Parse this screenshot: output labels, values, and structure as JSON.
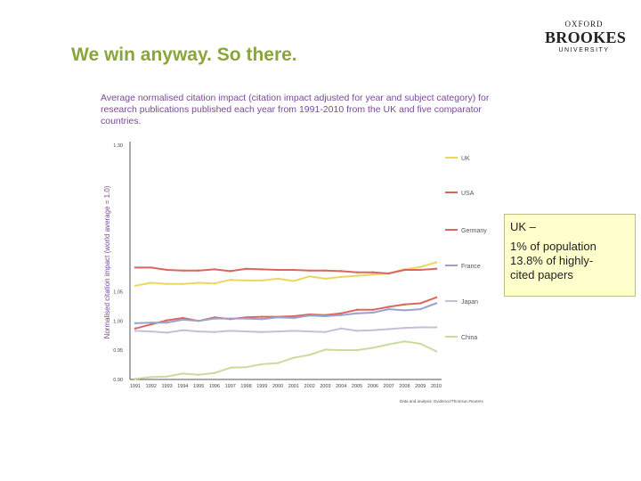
{
  "slide": {
    "title": "We win anyway. So there.",
    "logo": {
      "line1": "OXFORD",
      "line2": "BROOKES",
      "line3": "UNIVERSITY"
    },
    "callout": {
      "heading": "UK –",
      "line1": "1% of population",
      "line2": "13.8% of highly-",
      "line3": "cited papers"
    }
  },
  "chart_data": {
    "type": "line",
    "title": "Average normalised citation impact (citation impact adjusted for year and subject category) for research publications published each year from 1991-2010 from the UK and five comparator countries.",
    "ylabel": "Normalised citation impact (world average = 1.0)",
    "xlabel": "",
    "x": [
      "1991",
      "1992",
      "1993",
      "1994",
      "1995",
      "1996",
      "1997",
      "1998",
      "1999",
      "2000",
      "2001",
      "2002",
      "2003",
      "2004",
      "2005",
      "2006",
      "2007",
      "2008",
      "2009",
      "2010"
    ],
    "x_tick_labels": [
      "1991",
      "1992",
      "1993",
      "1994",
      "1995",
      "1996",
      "1997",
      "1998",
      "1999",
      "2000",
      "2001",
      "2002",
      "2003",
      "2004",
      "2005",
      "2006",
      "2007",
      "2008",
      "2009",
      "2010"
    ],
    "ylim": [
      0.9,
      1.3
    ],
    "y_ticks": [
      "0.90",
      "0.95",
      "1.00",
      "1.05",
      "1.30"
    ],
    "y_tick_values": [
      0.9,
      0.95,
      1.0,
      1.05,
      1.3
    ],
    "grid": false,
    "legend": "right (end labels)",
    "source_note": "Data and analysis: Evidence/Thomson Reuters",
    "series": [
      {
        "name": "UK",
        "color": "#ecd75e",
        "values": [
          1.06,
          1.065,
          1.063,
          1.063,
          1.065,
          1.064,
          1.07,
          1.069,
          1.069,
          1.072,
          1.068,
          1.076,
          1.072,
          1.075,
          1.077,
          1.079,
          1.081,
          1.088,
          1.092,
          1.1
        ]
      },
      {
        "name": "USA",
        "color": "#d8675e",
        "values": [
          1.091,
          1.091,
          1.087,
          1.086,
          1.086,
          1.088,
          1.085,
          1.089,
          1.088,
          1.087,
          1.087,
          1.086,
          1.086,
          1.085,
          1.083,
          1.083,
          1.081,
          1.087,
          1.087,
          1.089
        ]
      },
      {
        "name": "Germany",
        "color": "#d8675e",
        "values": [
          0.987,
          0.994,
          1.001,
          1.005,
          1.0,
          1.006,
          1.003,
          1.006,
          1.007,
          1.007,
          1.008,
          1.011,
          1.01,
          1.013,
          1.019,
          1.019,
          1.024,
          1.028,
          1.03,
          1.04
        ]
      },
      {
        "name": "France",
        "color": "#9aa3cc",
        "values": [
          0.996,
          0.997,
          0.997,
          1.002,
          1.0,
          1.004,
          1.004,
          1.004,
          1.003,
          1.006,
          1.005,
          1.009,
          1.008,
          1.01,
          1.013,
          1.014,
          1.02,
          1.018,
          1.02,
          1.03
        ]
      },
      {
        "name": "Japan",
        "color": "#c9bdd8",
        "values": [
          0.983,
          0.982,
          0.98,
          0.984,
          0.982,
          0.981,
          0.983,
          0.982,
          0.981,
          0.982,
          0.983,
          0.982,
          0.981,
          0.987,
          0.983,
          0.984,
          0.986,
          0.988,
          0.989,
          0.989
        ]
      },
      {
        "name": "China",
        "color": "#c9dc9e",
        "values": [
          0.901,
          0.904,
          0.905,
          0.91,
          0.908,
          0.911,
          0.92,
          0.921,
          0.926,
          0.928,
          0.937,
          0.942,
          0.951,
          0.95,
          0.95,
          0.954,
          0.96,
          0.965,
          0.961,
          0.948
        ]
      }
    ]
  }
}
